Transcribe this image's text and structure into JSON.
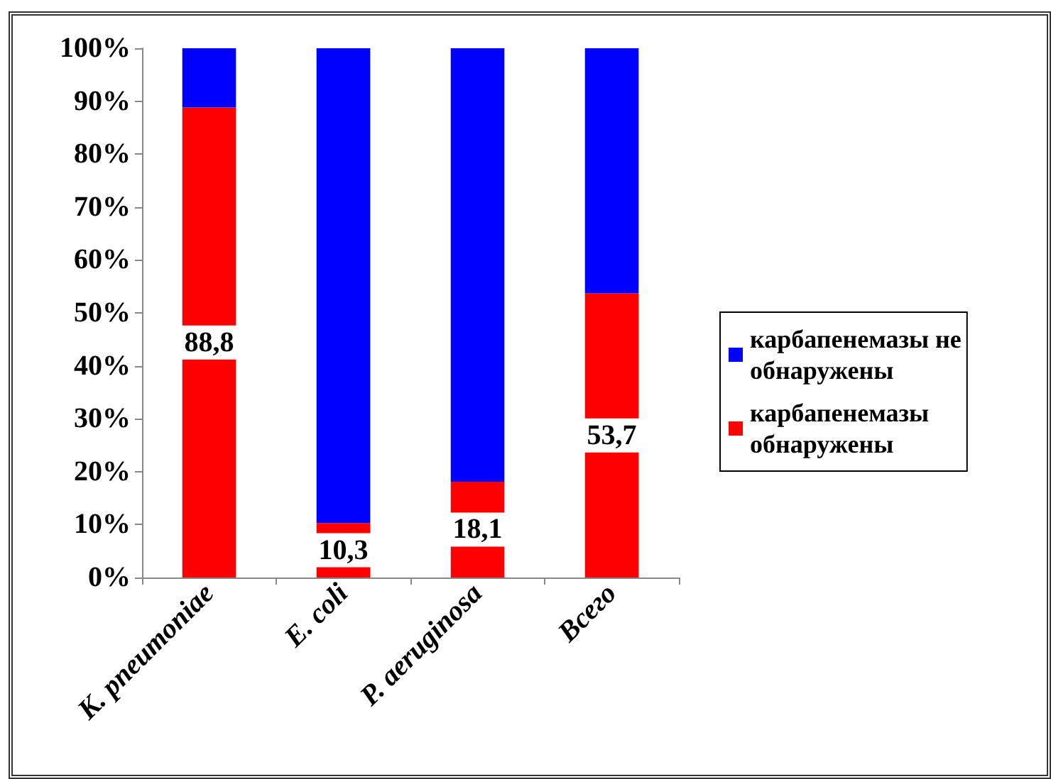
{
  "chart_data": {
    "type": "bar",
    "stacked": true,
    "categories": [
      "K. pneumoniae",
      "E. coli",
      "P. aeruginosa",
      "Всего"
    ],
    "series": [
      {
        "name": "карбапенемазы обнаружены",
        "color": "#ff0000",
        "values": [
          88.8,
          10.3,
          18.1,
          53.7
        ],
        "value_labels": [
          "88,8",
          "10,3",
          "18,1",
          "53,7"
        ]
      },
      {
        "name": "карбапенемазы не обнаружены",
        "color": "#0000ff",
        "values": [
          11.2,
          89.7,
          81.9,
          46.3
        ]
      }
    ],
    "ylim": [
      0,
      100
    ],
    "yticks": [
      {
        "value": 0,
        "label": "0%"
      },
      {
        "value": 10,
        "label": "10%"
      },
      {
        "value": 20,
        "label": "20%"
      },
      {
        "value": 30,
        "label": "30%"
      },
      {
        "value": 40,
        "label": "40%"
      },
      {
        "value": 50,
        "label": "50%"
      },
      {
        "value": 60,
        "label": "60%"
      },
      {
        "value": 70,
        "label": "70%"
      },
      {
        "value": 80,
        "label": "80%"
      },
      {
        "value": 90,
        "label": "90%"
      },
      {
        "value": 100,
        "label": "100%"
      }
    ],
    "grid": false,
    "legend": "right"
  }
}
